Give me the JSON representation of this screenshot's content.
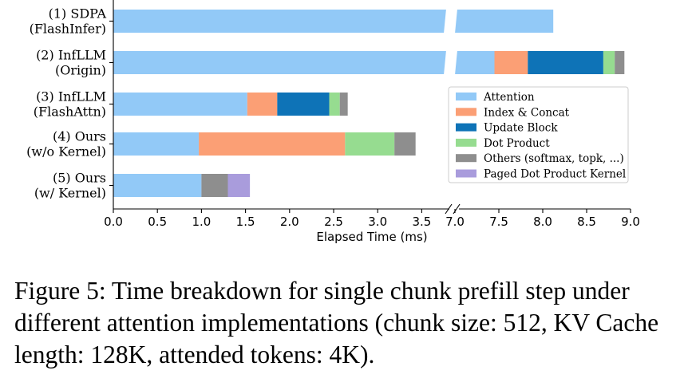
{
  "chart_data": {
    "type": "bar",
    "orientation": "horizontal",
    "stacked": true,
    "broken_axis": true,
    "xlabel": "Elapsed Time (ms)",
    "x_ticks_left": [
      "0.0",
      "0.5",
      "1.0",
      "1.5",
      "2.0",
      "2.5",
      "3.0",
      "3.5"
    ],
    "x_ticks_right": [
      "7.0",
      "7.5",
      "8.0",
      "8.5",
      "9.0"
    ],
    "xlim_segments": [
      [
        0,
        3.8
      ],
      [
        6.9,
        9.0
      ]
    ],
    "categories": [
      {
        "line1": "(1) SDPA",
        "line2": "(FlashInfer)"
      },
      {
        "line1": "(2) InfLLM",
        "line2": "(Origin)"
      },
      {
        "line1": "(3) InfLLM",
        "line2": "(FlashAttn)"
      },
      {
        "line1": "(4) Ours",
        "line2": "(w/o Kernel)"
      },
      {
        "line1": "(5) Ours",
        "line2": "(w/ Kernel)"
      }
    ],
    "series": [
      {
        "name": "Attention",
        "color": "#92c9f7",
        "values": [
          8.12,
          7.45,
          1.52,
          0.97,
          1.0
        ]
      },
      {
        "name": "Index & Concat",
        "color": "#fb9f75",
        "values": [
          0,
          0.38,
          0.34,
          1.66,
          0
        ]
      },
      {
        "name": "Update Block",
        "color": "#0e73b7",
        "values": [
          0,
          0.86,
          0.59,
          0,
          0
        ]
      },
      {
        "name": "Dot Product",
        "color": "#96dc90",
        "values": [
          0,
          0.13,
          0.12,
          0.56,
          0
        ]
      },
      {
        "name": "Others (softmax, topk, ...)",
        "color": "#8e8e8e",
        "values": [
          0,
          0.11,
          0.09,
          0.24,
          0.3
        ]
      },
      {
        "name": "Paged Dot Product Kernel",
        "color": "#a99cdc",
        "values": [
          0,
          0,
          0,
          0,
          0.25
        ]
      }
    ],
    "legend_position": "center-right",
    "grid": false
  },
  "caption": "Figure 5: Time breakdown for single chunk prefill step under different attention implementations (chunk size: 512, KV Cache length: 128K, attended tokens: 4K)."
}
